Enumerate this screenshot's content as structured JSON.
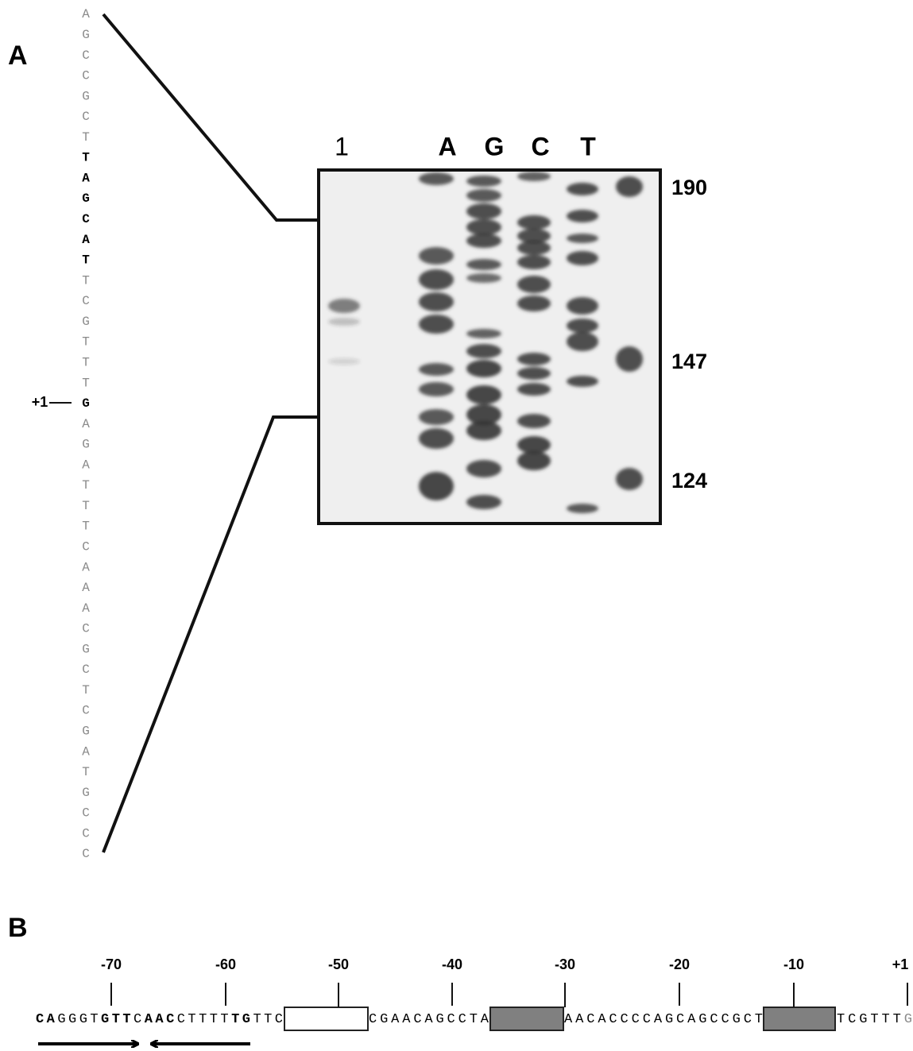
{
  "panel_a": {
    "label": "A",
    "sequence": [
      {
        "base": "A",
        "style": "faint"
      },
      {
        "base": "G",
        "style": "faint"
      },
      {
        "base": "C",
        "style": "faint"
      },
      {
        "base": "C",
        "style": "faint"
      },
      {
        "base": "G",
        "style": "faint"
      },
      {
        "base": "C",
        "style": "faint"
      },
      {
        "base": "T",
        "style": "faint"
      },
      {
        "base": "T",
        "style": "bold"
      },
      {
        "base": "A",
        "style": "bold"
      },
      {
        "base": "G",
        "style": "bold"
      },
      {
        "base": "C",
        "style": "bold"
      },
      {
        "base": "A",
        "style": "bold"
      },
      {
        "base": "T",
        "style": "bold"
      },
      {
        "base": "T",
        "style": "faint"
      },
      {
        "base": "C",
        "style": "faint"
      },
      {
        "base": "G",
        "style": "faint"
      },
      {
        "base": "T",
        "style": "faint"
      },
      {
        "base": "T",
        "style": "faint"
      },
      {
        "base": "T",
        "style": "faint"
      },
      {
        "base": "G",
        "style": "bold"
      },
      {
        "base": "A",
        "style": "faint"
      },
      {
        "base": "G",
        "style": "faint"
      },
      {
        "base": "A",
        "style": "faint"
      },
      {
        "base": "T",
        "style": "faint"
      },
      {
        "base": "T",
        "style": "faint"
      },
      {
        "base": "T",
        "style": "faint"
      },
      {
        "base": "C",
        "style": "faint"
      },
      {
        "base": "A",
        "style": "faint"
      },
      {
        "base": "A",
        "style": "faint"
      },
      {
        "base": "A",
        "style": "faint"
      },
      {
        "base": "C",
        "style": "faint"
      },
      {
        "base": "G",
        "style": "faint"
      },
      {
        "base": "C",
        "style": "faint"
      },
      {
        "base": "T",
        "style": "faint"
      },
      {
        "base": "C",
        "style": "faint"
      },
      {
        "base": "G",
        "style": "faint"
      },
      {
        "base": "A",
        "style": "faint"
      },
      {
        "base": "T",
        "style": "faint"
      },
      {
        "base": "G",
        "style": "faint"
      },
      {
        "base": "C",
        "style": "faint"
      },
      {
        "base": "C",
        "style": "faint"
      },
      {
        "base": "C",
        "style": "faint"
      }
    ],
    "position_label": "+1",
    "lanes": [
      "1",
      "A",
      "G",
      "C",
      "T"
    ],
    "size_markers": [
      "190",
      "147",
      "124"
    ]
  },
  "panel_b": {
    "label": "B",
    "positions": [
      "-70",
      "-60",
      "-50",
      "-40",
      "-30",
      "-20",
      "-10",
      "+1"
    ],
    "sequence": [
      [
        {
          "text": "CA",
          "style": "bold"
        },
        {
          "text": "GGGT",
          "style": "normal"
        },
        {
          "text": "GTT",
          "style": "bold"
        },
        {
          "text": "C",
          "style": "normal"
        },
        {
          "text": "AAC",
          "style": "bold"
        },
        {
          "text": "CTTTT",
          "style": "normal"
        },
        {
          "text": "TG",
          "style": "bold"
        },
        {
          "text": "TTC",
          "style": "normal"
        }
      ],
      [
        {
          "text": "CGAACAGCCTA",
          "style": "normal"
        }
      ],
      [
        {
          "text": "AACACCCCAGCAGCCGCT",
          "style": "normal"
        }
      ],
      [
        {
          "text": "TCGTTT",
          "style": "normal"
        },
        {
          "text": "G",
          "style": "faint"
        }
      ]
    ]
  }
}
